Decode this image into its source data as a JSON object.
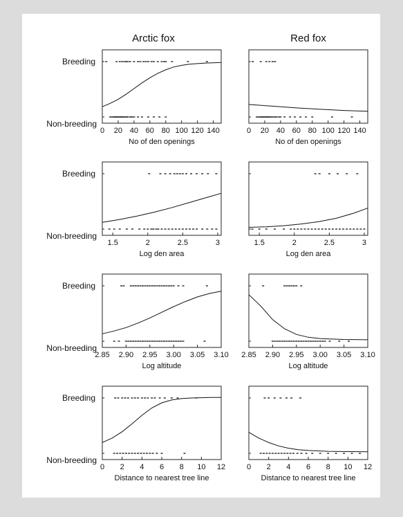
{
  "figure": {
    "column_titles": [
      "Arctic fox",
      "Red fox"
    ],
    "row_labels": {
      "top": "Breeding",
      "bottom": "Non-breeding"
    }
  },
  "chart_data": [
    {
      "type": "scatter",
      "panel": "arctic-openings",
      "column": "Arctic fox",
      "xlabel": "No of den openings",
      "xlim": [
        0,
        150
      ],
      "xticks": [
        0,
        20,
        40,
        60,
        80,
        100,
        120,
        140
      ],
      "ylim": [
        0,
        1
      ],
      "ytick_labels": [
        "Breeding",
        "Non-breeding"
      ],
      "breeding_x": [
        5,
        18,
        22,
        25,
        28,
        30,
        32,
        35,
        40,
        45,
        48,
        52,
        55,
        58,
        62,
        65,
        70,
        75,
        78,
        80,
        88,
        108,
        132
      ],
      "nonbreeding_x": [
        10,
        12,
        14,
        15,
        16,
        17,
        18,
        19,
        20,
        21,
        22,
        23,
        24,
        25,
        26,
        27,
        28,
        30,
        31,
        32,
        35,
        36,
        38,
        40,
        45,
        50,
        58,
        65,
        72,
        80
      ],
      "curve": {
        "x": [
          0,
          10,
          20,
          30,
          40,
          50,
          60,
          70,
          80,
          90,
          100,
          110,
          120,
          130,
          140,
          150
        ],
        "y": [
          0.18,
          0.24,
          0.31,
          0.4,
          0.5,
          0.6,
          0.69,
          0.77,
          0.83,
          0.88,
          0.91,
          0.93,
          0.94,
          0.95,
          0.955,
          0.96
        ]
      }
    },
    {
      "type": "scatter",
      "panel": "red-openings",
      "column": "Red fox",
      "xlabel": "No of den openings",
      "xlim": [
        0,
        150
      ],
      "xticks": [
        0,
        20,
        40,
        60,
        80,
        100,
        120,
        140
      ],
      "ylim": [
        0,
        1
      ],
      "breeding_x": [
        5,
        15,
        22,
        26,
        30,
        33
      ],
      "nonbreeding_x": [
        10,
        12,
        14,
        15,
        16,
        17,
        18,
        19,
        20,
        21,
        22,
        23,
        24,
        25,
        26,
        27,
        28,
        30,
        32,
        34,
        35,
        38,
        40,
        45,
        52,
        58,
        65,
        72,
        80,
        105,
        130
      ],
      "curve": {
        "x": [
          0,
          30,
          60,
          90,
          120,
          150
        ],
        "y": [
          0.22,
          0.19,
          0.16,
          0.135,
          0.115,
          0.1
        ]
      }
    },
    {
      "type": "scatter",
      "panel": "arctic-area",
      "column": "Arctic fox",
      "xlabel": "Log den area",
      "xlim": [
        1.35,
        3.05
      ],
      "xticks": [
        1.5,
        2.0,
        2.5,
        3.0
      ],
      "ylim": [
        0,
        1
      ],
      "breeding_x": [
        2.02,
        2.18,
        2.25,
        2.32,
        2.38,
        2.42,
        2.46,
        2.5,
        2.55,
        2.62,
        2.7,
        2.78,
        2.86,
        2.98
      ],
      "nonbreeding_x": [
        1.45,
        1.52,
        1.6,
        1.7,
        1.78,
        1.88,
        1.95,
        2.0,
        2.05,
        2.08,
        2.12,
        2.15,
        2.2,
        2.25,
        2.3,
        2.35,
        2.4,
        2.45,
        2.5,
        2.55,
        2.6,
        2.65,
        2.7,
        2.78,
        2.85,
        2.92,
        2.98
      ],
      "curve": {
        "x": [
          1.35,
          1.6,
          1.85,
          2.1,
          2.35,
          2.6,
          2.85,
          3.05
        ],
        "y": [
          0.12,
          0.17,
          0.23,
          0.3,
          0.38,
          0.47,
          0.56,
          0.63
        ]
      }
    },
    {
      "type": "scatter",
      "panel": "red-area",
      "column": "Red fox",
      "xlabel": "Log den area",
      "xlim": [
        1.35,
        3.05
      ],
      "xticks": [
        1.5,
        2.0,
        2.5,
        3.0
      ],
      "ylim": [
        0,
        1
      ],
      "breeding_x": [
        2.3,
        2.36,
        2.5,
        2.62,
        2.75,
        2.9
      ],
      "nonbreeding_x": [
        1.4,
        1.5,
        1.6,
        1.72,
        1.85,
        1.95,
        2.0,
        2.05,
        2.1,
        2.15,
        2.2,
        2.25,
        2.3,
        2.35,
        2.4,
        2.45,
        2.5,
        2.55,
        2.6,
        2.65,
        2.7,
        2.75,
        2.8,
        2.85,
        2.9,
        2.95,
        3.0
      ],
      "curve": {
        "x": [
          1.35,
          1.6,
          1.85,
          2.1,
          2.35,
          2.6,
          2.85,
          3.05
        ],
        "y": [
          0.03,
          0.04,
          0.06,
          0.09,
          0.13,
          0.19,
          0.28,
          0.37
        ]
      }
    },
    {
      "type": "scatter",
      "panel": "arctic-altitude",
      "column": "Arctic fox",
      "xlabel": "Log altitude",
      "xlim": [
        2.85,
        3.1
      ],
      "xticks": [
        "2.85",
        "2.90",
        "2.95",
        "3.00",
        "3.05",
        "3.10"
      ],
      "ylim": [
        0,
        1
      ],
      "breeding_x": [
        2.89,
        2.895,
        2.91,
        2.915,
        2.92,
        2.925,
        2.93,
        2.935,
        2.94,
        2.945,
        2.95,
        2.955,
        2.96,
        2.965,
        2.97,
        2.975,
        2.98,
        2.985,
        2.99,
        2.995,
        3.0,
        3.01,
        3.02,
        3.07
      ],
      "nonbreeding_x": [
        2.875,
        2.885,
        2.9,
        2.905,
        2.91,
        2.915,
        2.92,
        2.925,
        2.93,
        2.935,
        2.94,
        2.945,
        2.95,
        2.955,
        2.96,
        2.965,
        2.97,
        2.975,
        2.98,
        2.985,
        2.99,
        2.995,
        3.0,
        3.005,
        3.01,
        3.015,
        3.02,
        3.065
      ],
      "curve": {
        "x": [
          2.85,
          2.875,
          2.9,
          2.925,
          2.95,
          2.975,
          3.0,
          3.025,
          3.05,
          3.075,
          3.1
        ],
        "y": [
          0.13,
          0.18,
          0.24,
          0.32,
          0.41,
          0.51,
          0.61,
          0.7,
          0.78,
          0.84,
          0.88
        ]
      }
    },
    {
      "type": "scatter",
      "panel": "red-altitude",
      "column": "Red fox",
      "xlabel": "Log altitude",
      "xlim": [
        2.85,
        3.1
      ],
      "xticks": [
        "2.85",
        "2.90",
        "2.95",
        "3.00",
        "3.05",
        "3.10"
      ],
      "ylim": [
        0,
        1
      ],
      "breeding_x": [
        2.88,
        2.925,
        2.93,
        2.935,
        2.94,
        2.945,
        2.95,
        2.96
      ],
      "nonbreeding_x": [
        2.9,
        2.905,
        2.91,
        2.915,
        2.92,
        2.925,
        2.93,
        2.935,
        2.94,
        2.945,
        2.95,
        2.955,
        2.96,
        2.965,
        2.97,
        2.975,
        2.98,
        2.985,
        2.99,
        2.995,
        3.0,
        3.005,
        3.01,
        3.02,
        3.04,
        3.06
      ],
      "curve": {
        "x": [
          2.85,
          2.875,
          2.9,
          2.925,
          2.95,
          2.975,
          3.0,
          3.05,
          3.1
        ],
        "y": [
          0.82,
          0.62,
          0.38,
          0.22,
          0.12,
          0.07,
          0.045,
          0.03,
          0.025
        ]
      }
    },
    {
      "type": "scatter",
      "panel": "arctic-treeline",
      "column": "Arctic fox",
      "xlabel": "Distance to nearest tree line",
      "xlim": [
        0,
        12
      ],
      "xticks": [
        0,
        2,
        4,
        6,
        8,
        10,
        12
      ],
      "ylim": [
        0,
        1
      ],
      "breeding_x": [
        1.3,
        1.6,
        2.0,
        2.3,
        2.6,
        3.0,
        3.3,
        3.6,
        4.0,
        4.3,
        4.6,
        5.0,
        5.3,
        5.8,
        6.3,
        7.0,
        7.6,
        9.5
      ],
      "nonbreeding_x": [
        1.2,
        1.5,
        1.8,
        2.1,
        2.4,
        2.7,
        3.0,
        3.3,
        3.6,
        3.9,
        4.2,
        4.5,
        4.8,
        5.1,
        5.5,
        6.0,
        8.3
      ],
      "curve": {
        "x": [
          0,
          1,
          2,
          3,
          4,
          5,
          6,
          7,
          8,
          9,
          10,
          11,
          12
        ],
        "y": [
          0.19,
          0.27,
          0.38,
          0.52,
          0.67,
          0.8,
          0.89,
          0.94,
          0.965,
          0.975,
          0.98,
          0.985,
          0.985
        ]
      }
    },
    {
      "type": "scatter",
      "panel": "red-treeline",
      "column": "Red fox",
      "xlabel": "Distance to nearest tree line",
      "xlim": [
        0,
        12
      ],
      "xticks": [
        0,
        2,
        4,
        6,
        8,
        10,
        12
      ],
      "ylim": [
        0,
        1
      ],
      "breeding_x": [
        1.6,
        2.0,
        2.6,
        3.2,
        3.8,
        4.3,
        5.2
      ],
      "nonbreeding_x": [
        1.2,
        1.5,
        1.8,
        2.1,
        2.4,
        2.7,
        3.0,
        3.3,
        3.6,
        3.9,
        4.2,
        4.5,
        4.9,
        5.3,
        5.8,
        6.4,
        7.2,
        8.0,
        8.8,
        9.6,
        10.4,
        11.2
      ],
      "curve": {
        "x": [
          0,
          1,
          2,
          3,
          4,
          5,
          6,
          8,
          10,
          12
        ],
        "y": [
          0.37,
          0.27,
          0.19,
          0.13,
          0.09,
          0.065,
          0.05,
          0.035,
          0.03,
          0.028
        ]
      }
    }
  ]
}
